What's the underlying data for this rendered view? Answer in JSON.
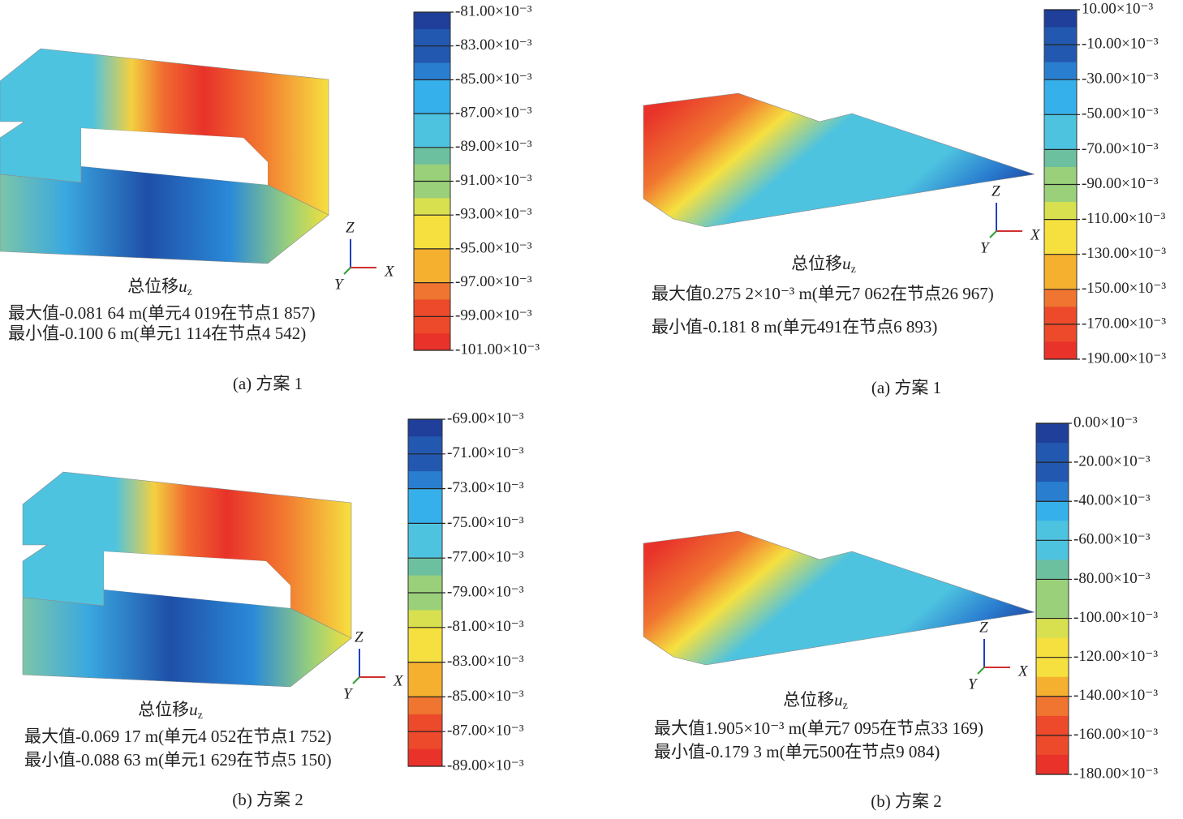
{
  "panels": [
    {
      "caption": "(a) 方案 1",
      "plot_title": "总位移",
      "plot_var": "u",
      "plot_sub": "z",
      "max_text": "最大值-0.081 64 m(单元4 019在节点1 857)",
      "min_text": "最小值-0.100 6 m(单元1 114在节点4 542)",
      "axes": {
        "x": "X",
        "y": "Y",
        "z": "Z"
      },
      "colorbar": [
        "-81.00×10⁻³",
        "-83.00×10⁻³",
        "-85.00×10⁻³",
        "-87.00×10⁻³",
        "-89.00×10⁻³",
        "-91.00×10⁻³",
        "-93.00×10⁻³",
        "-95.00×10⁻³",
        "-97.00×10⁻³",
        "-99.00×10⁻³",
        "-101.00×10⁻³"
      ]
    },
    {
      "caption": "(a) 方案 1",
      "plot_title": "总位移",
      "plot_var": "u",
      "plot_sub": "z",
      "max_text": "最大值0.275 2×10⁻³ m(单元7 062在节点26 967)",
      "min_text": "最小值-0.181 8 m(单元491在节点6 893)",
      "axes": {
        "x": "X",
        "y": "Y",
        "z": "Z"
      },
      "colorbar": [
        "10.00×10⁻³",
        "-10.00×10⁻³",
        "-30.00×10⁻³",
        "-50.00×10⁻³",
        "-70.00×10⁻³",
        "-90.00×10⁻³",
        "-110.00×10⁻³",
        "-130.00×10⁻³",
        "-150.00×10⁻³",
        "-170.00×10⁻³",
        "-190.00×10⁻³"
      ]
    },
    {
      "caption": "(b) 方案 2",
      "plot_title": "总位移",
      "plot_var": "u",
      "plot_sub": "z",
      "max_text": "最大值-0.069 17 m(单元4 052在节点1 752)",
      "min_text": "最小值-0.088 63 m(单元1 629在节点5 150)",
      "axes": {
        "x": "X",
        "y": "Y",
        "z": "Z"
      },
      "colorbar": [
        "-69.00×10⁻³",
        "-71.00×10⁻³",
        "-73.00×10⁻³",
        "-75.00×10⁻³",
        "-77.00×10⁻³",
        "-79.00×10⁻³",
        "-81.00×10⁻³",
        "-83.00×10⁻³",
        "-85.00×10⁻³",
        "-87.00×10⁻³",
        "-89.00×10⁻³"
      ]
    },
    {
      "caption": "(b) 方案 2",
      "plot_title": "总位移",
      "plot_var": "u",
      "plot_sub": "z",
      "max_text": "最大值1.905×10⁻³ m(单元7 095在节点33 169)",
      "min_text": "最小值-0.179 3 m(单元500在节点9 084)",
      "axes": {
        "x": "X",
        "y": "Y",
        "z": "Z"
      },
      "colorbar": [
        "0.00×10⁻³",
        "-20.00×10⁻³",
        "-40.00×10⁻³",
        "-60.00×10⁻³",
        "-80.00×10⁻³",
        "-100.00×10⁻³",
        "-120.00×10⁻³",
        "-140.00×10⁻³",
        "-160.00×10⁻³",
        "-180.00×10⁻³"
      ]
    }
  ]
}
